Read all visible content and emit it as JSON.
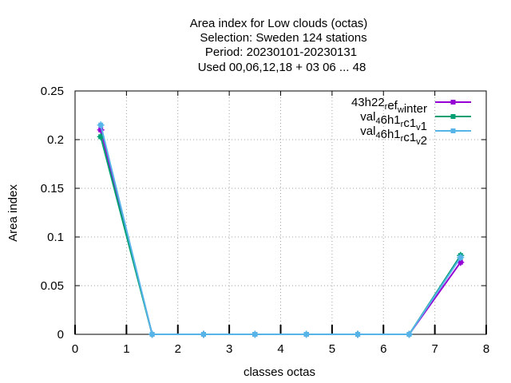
{
  "chart_data": {
    "type": "line",
    "title_lines": [
      "Area index  for Low clouds (octas)",
      "Selection: Sweden    124 stations",
      "Period: 20230101-20230131",
      "Used  00,06,12,18  + 03 06 ... 48"
    ],
    "xlabel": "classes octas",
    "ylabel": "Area index",
    "xlim": [
      0,
      8
    ],
    "ylim": [
      0,
      0.25
    ],
    "xticks": [
      0,
      1,
      2,
      3,
      4,
      5,
      6,
      7,
      8
    ],
    "yticks": [
      0,
      0.05,
      0.1,
      0.15,
      0.2,
      0.25
    ],
    "grid": true,
    "legend_position": "top-right",
    "x": [
      0.5,
      1.5,
      2.5,
      3.5,
      4.5,
      5.5,
      6.5,
      7.5
    ],
    "series": [
      {
        "name": "43h22_ref_winter",
        "legend_main": [
          "43h22",
          "ef",
          "inter"
        ],
        "legend_subs": [
          "r",
          "w"
        ],
        "color": "#9400d3",
        "values": [
          0.21,
          0.0,
          0.0,
          0.0,
          0.0,
          0.0,
          0.0,
          0.074
        ]
      },
      {
        "name": "val_46h1_rc1_v1",
        "legend_main": [
          "val",
          "6h1",
          "c1",
          "1"
        ],
        "legend_subs": [
          "4",
          "r",
          "v"
        ],
        "color": "#009e73",
        "values": [
          0.203,
          0.0,
          0.0,
          0.0,
          0.0,
          0.0,
          0.0,
          0.081
        ]
      },
      {
        "name": "val_46h1_rc1_v2",
        "legend_main": [
          "val",
          "6h1",
          "c1",
          "2"
        ],
        "legend_subs": [
          "4",
          "r",
          "v"
        ],
        "color": "#56b4e9",
        "values": [
          0.215,
          0.0,
          0.0,
          0.0,
          0.0,
          0.0,
          0.0,
          0.079
        ]
      }
    ]
  }
}
